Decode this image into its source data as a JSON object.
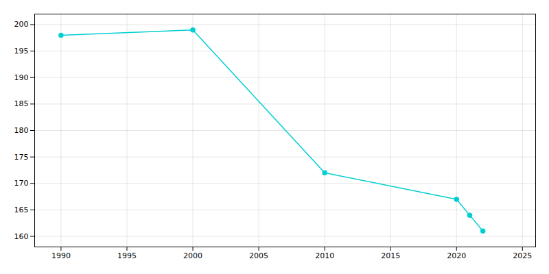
{
  "chart_data": {
    "type": "line",
    "x": [
      1990,
      2000,
      2010,
      2020,
      2021,
      2022
    ],
    "values": [
      198,
      199,
      172,
      167,
      164,
      161
    ],
    "color": "#00CED1",
    "marker": "circle",
    "xlim": [
      1988,
      2026
    ],
    "ylim": [
      158,
      202
    ],
    "xticks": [
      1990,
      1995,
      2000,
      2005,
      2010,
      2015,
      2020,
      2025
    ],
    "yticks": [
      160,
      165,
      170,
      175,
      180,
      185,
      190,
      195,
      200
    ],
    "grid": true
  }
}
